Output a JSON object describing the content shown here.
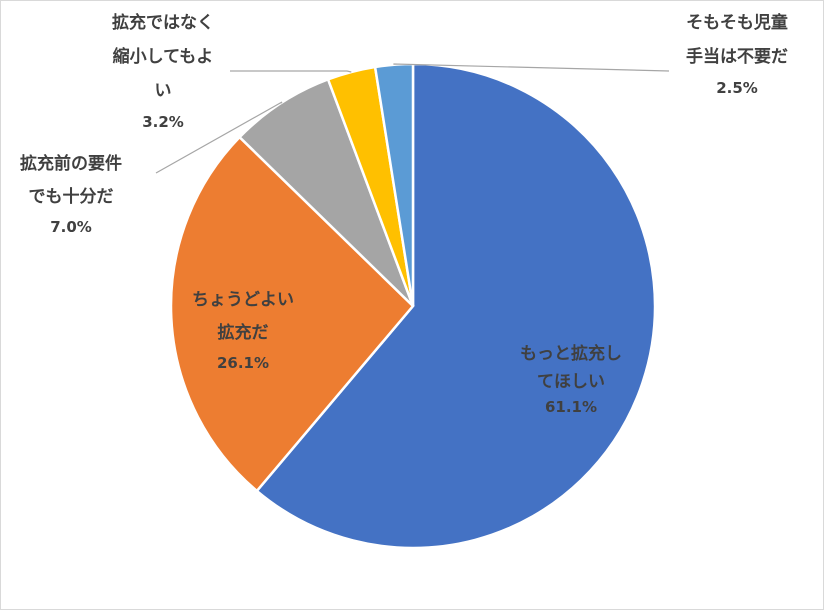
{
  "chart_data": {
    "type": "pie",
    "title": "",
    "slices": [
      {
        "name": "もっと拡充してほしい",
        "name_lines": [
          "もっと拡充し",
          "てほしい"
        ],
        "value": 61.1,
        "label": "61.1%",
        "color": "#4472C4"
      },
      {
        "name": "ちょうどよい拡充だ",
        "name_lines": [
          "ちょうどよい",
          "拡充だ"
        ],
        "value": 26.1,
        "label": "26.1%",
        "color": "#ED7D31"
      },
      {
        "name": "拡充前の要件でも十分だ",
        "name_lines": [
          "拡充前の要件",
          "でも十分だ"
        ],
        "value": 7.0,
        "label": "7.0%",
        "color": "#A5A5A5"
      },
      {
        "name": "拡充ではなく縮小してもよい",
        "name_lines": [
          "拡充ではなく",
          "縮小してもよ",
          "い"
        ],
        "value": 3.2,
        "label": "3.2%",
        "color": "#FFC000"
      },
      {
        "name": "そもそも児童手当は不要だ",
        "name_lines": [
          "そもそも児童",
          "手当は不要だ"
        ],
        "value": 2.5,
        "label": "2.5%",
        "color": "#5B9BD5"
      }
    ],
    "start": "12 o'clock",
    "direction": "clockwise",
    "legend": "none"
  }
}
